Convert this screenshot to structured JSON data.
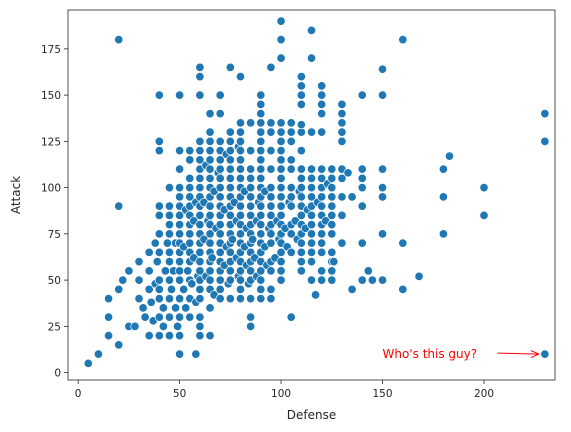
{
  "chart_data": {
    "type": "scatter",
    "title": "",
    "xlabel": "Defense",
    "ylabel": "Attack",
    "xlim": [
      -5,
      235
    ],
    "ylim": [
      -4,
      196
    ],
    "xticks": [
      0,
      50,
      100,
      150,
      200
    ],
    "yticks": [
      0,
      25,
      50,
      75,
      100,
      125,
      150,
      175
    ],
    "grid": false,
    "legend": "none",
    "marker_color": "#1f77b4",
    "annotation": {
      "text": "Who's this guy?",
      "text_x": 150,
      "text_y": 10,
      "target_x": 230,
      "target_y": 10,
      "color": "#ff0000"
    },
    "points": [
      [
        5,
        5
      ],
      [
        10,
        10
      ],
      [
        15,
        20
      ],
      [
        15,
        30
      ],
      [
        15,
        40
      ],
      [
        20,
        15
      ],
      [
        20,
        45
      ],
      [
        20,
        90
      ],
      [
        20,
        180
      ],
      [
        22,
        50
      ],
      [
        25,
        55
      ],
      [
        25,
        25
      ],
      [
        28,
        25
      ],
      [
        30,
        60
      ],
      [
        30,
        50
      ],
      [
        30,
        40
      ],
      [
        32,
        35
      ],
      [
        33,
        30
      ],
      [
        35,
        20
      ],
      [
        35,
        45
      ],
      [
        35,
        55
      ],
      [
        35,
        65
      ],
      [
        36,
        38
      ],
      [
        37,
        28
      ],
      [
        38,
        48
      ],
      [
        38,
        70
      ],
      [
        39,
        60
      ],
      [
        40,
        20
      ],
      [
        40,
        30
      ],
      [
        40,
        40
      ],
      [
        40,
        50
      ],
      [
        40,
        65
      ],
      [
        40,
        75
      ],
      [
        40,
        45
      ],
      [
        40,
        85
      ],
      [
        40,
        90
      ],
      [
        40,
        120
      ],
      [
        40,
        125
      ],
      [
        40,
        150
      ],
      [
        42,
        25
      ],
      [
        42,
        35
      ],
      [
        43,
        55
      ],
      [
        44,
        70
      ],
      [
        45,
        20
      ],
      [
        45,
        30
      ],
      [
        45,
        40
      ],
      [
        45,
        50
      ],
      [
        45,
        60
      ],
      [
        45,
        65
      ],
      [
        45,
        75
      ],
      [
        45,
        80
      ],
      [
        45,
        85
      ],
      [
        45,
        90
      ],
      [
        45,
        100
      ],
      [
        46,
        45
      ],
      [
        47,
        55
      ],
      [
        48,
        35
      ],
      [
        48,
        70
      ],
      [
        49,
        25
      ],
      [
        50,
        10
      ],
      [
        50,
        20
      ],
      [
        50,
        30
      ],
      [
        50,
        40
      ],
      [
        50,
        50
      ],
      [
        50,
        55
      ],
      [
        50,
        60
      ],
      [
        50,
        65
      ],
      [
        50,
        70
      ],
      [
        50,
        75
      ],
      [
        50,
        80
      ],
      [
        50,
        85
      ],
      [
        50,
        90
      ],
      [
        50,
        95
      ],
      [
        50,
        100
      ],
      [
        50,
        110
      ],
      [
        50,
        120
      ],
      [
        50,
        150
      ],
      [
        52,
        45
      ],
      [
        52,
        68
      ],
      [
        53,
        35
      ],
      [
        53,
        88
      ],
      [
        54,
        55
      ],
      [
        55,
        30
      ],
      [
        55,
        40
      ],
      [
        55,
        50
      ],
      [
        55,
        60
      ],
      [
        55,
        65
      ],
      [
        55,
        70
      ],
      [
        55,
        75
      ],
      [
        55,
        80
      ],
      [
        55,
        85
      ],
      [
        55,
        90
      ],
      [
        55,
        95
      ],
      [
        55,
        100
      ],
      [
        55,
        105
      ],
      [
        55,
        115
      ],
      [
        55,
        120
      ],
      [
        56,
        48
      ],
      [
        57,
        62
      ],
      [
        57,
        82
      ],
      [
        58,
        10
      ],
      [
        58,
        38
      ],
      [
        58,
        92
      ],
      [
        59,
        52
      ],
      [
        60,
        20
      ],
      [
        60,
        25
      ],
      [
        60,
        30
      ],
      [
        60,
        40
      ],
      [
        60,
        45
      ],
      [
        60,
        50
      ],
      [
        60,
        55
      ],
      [
        60,
        60
      ],
      [
        60,
        65
      ],
      [
        60,
        70
      ],
      [
        60,
        75
      ],
      [
        60,
        80
      ],
      [
        60,
        85
      ],
      [
        60,
        90
      ],
      [
        60,
        95
      ],
      [
        60,
        100
      ],
      [
        60,
        105
      ],
      [
        60,
        110
      ],
      [
        60,
        115
      ],
      [
        60,
        120
      ],
      [
        60,
        125
      ],
      [
        60,
        150
      ],
      [
        60,
        160
      ],
      [
        60,
        165
      ],
      [
        62,
        72
      ],
      [
        62,
        92
      ],
      [
        63,
        52
      ],
      [
        63,
        112
      ],
      [
        64,
        82
      ],
      [
        65,
        20
      ],
      [
        65,
        35
      ],
      [
        65,
        45
      ],
      [
        65,
        50
      ],
      [
        65,
        55
      ],
      [
        65,
        60
      ],
      [
        65,
        65
      ],
      [
        65,
        70
      ],
      [
        65,
        75
      ],
      [
        65,
        80
      ],
      [
        65,
        85
      ],
      [
        65,
        90
      ],
      [
        65,
        95
      ],
      [
        65,
        100
      ],
      [
        65,
        105
      ],
      [
        65,
        110
      ],
      [
        65,
        115
      ],
      [
        65,
        120
      ],
      [
        65,
        125
      ],
      [
        65,
        130
      ],
      [
        65,
        140
      ],
      [
        66,
        62
      ],
      [
        67,
        42
      ],
      [
        67,
        98
      ],
      [
        68,
        78
      ],
      [
        69,
        108
      ],
      [
        70,
        40
      ],
      [
        70,
        45
      ],
      [
        70,
        50
      ],
      [
        70,
        55
      ],
      [
        70,
        60
      ],
      [
        70,
        65
      ],
      [
        70,
        70
      ],
      [
        70,
        75
      ],
      [
        70,
        80
      ],
      [
        70,
        85
      ],
      [
        70,
        90
      ],
      [
        70,
        95
      ],
      [
        70,
        100
      ],
      [
        70,
        105
      ],
      [
        70,
        110
      ],
      [
        70,
        115
      ],
      [
        70,
        120
      ],
      [
        70,
        125
      ],
      [
        70,
        140
      ],
      [
        70,
        150
      ],
      [
        72,
        58
      ],
      [
        72,
        88
      ],
      [
        73,
        68
      ],
      [
        73,
        118
      ],
      [
        74,
        48
      ],
      [
        75,
        40
      ],
      [
        75,
        50
      ],
      [
        75,
        55
      ],
      [
        75,
        60
      ],
      [
        75,
        65
      ],
      [
        75,
        70
      ],
      [
        75,
        75
      ],
      [
        75,
        80
      ],
      [
        75,
        85
      ],
      [
        75,
        90
      ],
      [
        75,
        95
      ],
      [
        75,
        100
      ],
      [
        75,
        105
      ],
      [
        75,
        110
      ],
      [
        75,
        115
      ],
      [
        75,
        120
      ],
      [
        75,
        125
      ],
      [
        75,
        130
      ],
      [
        75,
        165
      ],
      [
        76,
        72
      ],
      [
        77,
        92
      ],
      [
        78,
        62
      ],
      [
        78,
        82
      ],
      [
        79,
        52
      ],
      [
        79,
        122
      ],
      [
        80,
        40
      ],
      [
        80,
        45
      ],
      [
        80,
        50
      ],
      [
        80,
        55
      ],
      [
        80,
        60
      ],
      [
        80,
        65
      ],
      [
        80,
        70
      ],
      [
        80,
        75
      ],
      [
        80,
        80
      ],
      [
        80,
        85
      ],
      [
        80,
        90
      ],
      [
        80,
        95
      ],
      [
        80,
        100
      ],
      [
        80,
        105
      ],
      [
        80,
        110
      ],
      [
        80,
        115
      ],
      [
        80,
        120
      ],
      [
        80,
        125
      ],
      [
        80,
        130
      ],
      [
        80,
        135
      ],
      [
        80,
        160
      ],
      [
        82,
        68
      ],
      [
        82,
        98
      ],
      [
        83,
        58
      ],
      [
        83,
        78
      ],
      [
        84,
        48
      ],
      [
        85,
        25
      ],
      [
        85,
        30
      ],
      [
        85,
        40
      ],
      [
        85,
        50
      ],
      [
        85,
        55
      ],
      [
        85,
        60
      ],
      [
        85,
        65
      ],
      [
        85,
        70
      ],
      [
        85,
        75
      ],
      [
        85,
        80
      ],
      [
        85,
        85
      ],
      [
        85,
        90
      ],
      [
        85,
        95
      ],
      [
        85,
        100
      ],
      [
        85,
        105
      ],
      [
        85,
        110
      ],
      [
        85,
        120
      ],
      [
        85,
        135
      ],
      [
        86,
        72
      ],
      [
        87,
        62
      ],
      [
        88,
        82
      ],
      [
        88,
        52
      ],
      [
        89,
        92
      ],
      [
        90,
        40
      ],
      [
        90,
        45
      ],
      [
        90,
        50
      ],
      [
        90,
        55
      ],
      [
        90,
        60
      ],
      [
        90,
        65
      ],
      [
        90,
        70
      ],
      [
        90,
        75
      ],
      [
        90,
        80
      ],
      [
        90,
        85
      ],
      [
        90,
        90
      ],
      [
        90,
        95
      ],
      [
        90,
        100
      ],
      [
        90,
        105
      ],
      [
        90,
        110
      ],
      [
        90,
        115
      ],
      [
        90,
        120
      ],
      [
        90,
        125
      ],
      [
        90,
        130
      ],
      [
        90,
        135
      ],
      [
        90,
        140
      ],
      [
        90,
        145
      ],
      [
        90,
        150
      ],
      [
        92,
        68
      ],
      [
        92,
        98
      ],
      [
        93,
        58
      ],
      [
        94,
        78
      ],
      [
        95,
        40
      ],
      [
        95,
        45
      ],
      [
        95,
        55
      ],
      [
        95,
        60
      ],
      [
        95,
        70
      ],
      [
        95,
        75
      ],
      [
        95,
        80
      ],
      [
        95,
        85
      ],
      [
        95,
        90
      ],
      [
        95,
        95
      ],
      [
        95,
        100
      ],
      [
        95,
        110
      ],
      [
        95,
        120
      ],
      [
        95,
        130
      ],
      [
        95,
        135
      ],
      [
        95,
        165
      ],
      [
        97,
        62
      ],
      [
        98,
        82
      ],
      [
        99,
        72
      ],
      [
        100,
        50
      ],
      [
        100,
        55
      ],
      [
        100,
        60
      ],
      [
        100,
        65
      ],
      [
        100,
        70
      ],
      [
        100,
        75
      ],
      [
        100,
        80
      ],
      [
        100,
        85
      ],
      [
        100,
        90
      ],
      [
        100,
        95
      ],
      [
        100,
        100
      ],
      [
        100,
        105
      ],
      [
        100,
        110
      ],
      [
        100,
        115
      ],
      [
        100,
        120
      ],
      [
        100,
        125
      ],
      [
        100,
        130
      ],
      [
        100,
        135
      ],
      [
        100,
        170
      ],
      [
        100,
        180
      ],
      [
        100,
        190
      ],
      [
        102,
        78
      ],
      [
        103,
        68
      ],
      [
        104,
        92
      ],
      [
        105,
        30
      ],
      [
        105,
        65
      ],
      [
        105,
        75
      ],
      [
        105,
        80
      ],
      [
        105,
        90
      ],
      [
        105,
        95
      ],
      [
        105,
        100
      ],
      [
        105,
        110
      ],
      [
        105,
        115
      ],
      [
        105,
        125
      ],
      [
        105,
        130
      ],
      [
        105,
        135
      ],
      [
        107,
        82
      ],
      [
        108,
        72
      ],
      [
        109,
        98
      ],
      [
        110,
        55
      ],
      [
        110,
        60
      ],
      [
        110,
        65
      ],
      [
        110,
        70
      ],
      [
        110,
        75
      ],
      [
        110,
        80
      ],
      [
        110,
        85
      ],
      [
        110,
        90
      ],
      [
        110,
        95
      ],
      [
        110,
        100
      ],
      [
        110,
        105
      ],
      [
        110,
        110
      ],
      [
        110,
        120
      ],
      [
        110,
        130
      ],
      [
        110,
        134
      ],
      [
        110,
        145
      ],
      [
        110,
        150
      ],
      [
        110,
        155
      ],
      [
        110,
        160
      ],
      [
        112,
        78
      ],
      [
        113,
        88
      ],
      [
        115,
        50
      ],
      [
        115,
        60
      ],
      [
        115,
        65
      ],
      [
        115,
        70
      ],
      [
        115,
        75
      ],
      [
        115,
        80
      ],
      [
        115,
        85
      ],
      [
        115,
        90
      ],
      [
        115,
        95
      ],
      [
        115,
        100
      ],
      [
        115,
        105
      ],
      [
        115,
        110
      ],
      [
        115,
        130
      ],
      [
        115,
        170
      ],
      [
        115,
        185
      ],
      [
        117,
        42
      ],
      [
        118,
        92
      ],
      [
        120,
        50
      ],
      [
        120,
        55
      ],
      [
        120,
        65
      ],
      [
        120,
        70
      ],
      [
        120,
        75
      ],
      [
        120,
        80
      ],
      [
        120,
        85
      ],
      [
        120,
        90
      ],
      [
        120,
        95
      ],
      [
        120,
        100
      ],
      [
        120,
        105
      ],
      [
        120,
        110
      ],
      [
        120,
        130
      ],
      [
        120,
        140
      ],
      [
        120,
        145
      ],
      [
        120,
        150
      ],
      [
        120,
        155
      ],
      [
        122,
        82
      ],
      [
        123,
        102
      ],
      [
        125,
        50
      ],
      [
        125,
        55
      ],
      [
        125,
        60
      ],
      [
        125,
        65
      ],
      [
        125,
        75
      ],
      [
        125,
        80
      ],
      [
        125,
        85
      ],
      [
        125,
        90
      ],
      [
        125,
        95
      ],
      [
        125,
        100
      ],
      [
        125,
        105
      ],
      [
        125,
        110
      ],
      [
        126,
        60
      ],
      [
        130,
        70
      ],
      [
        130,
        85
      ],
      [
        130,
        95
      ],
      [
        130,
        105
      ],
      [
        130,
        110
      ],
      [
        130,
        125
      ],
      [
        130,
        130
      ],
      [
        130,
        135
      ],
      [
        130,
        140
      ],
      [
        130,
        145
      ],
      [
        133,
        108
      ],
      [
        135,
        45
      ],
      [
        135,
        95
      ],
      [
        140,
        50
      ],
      [
        140,
        70
      ],
      [
        140,
        90
      ],
      [
        140,
        100
      ],
      [
        140,
        105
      ],
      [
        140,
        110
      ],
      [
        140,
        150
      ],
      [
        143,
        55
      ],
      [
        145,
        50
      ],
      [
        150,
        50
      ],
      [
        150,
        75
      ],
      [
        150,
        95
      ],
      [
        150,
        100
      ],
      [
        150,
        110
      ],
      [
        150,
        150
      ],
      [
        150,
        164
      ],
      [
        160,
        45
      ],
      [
        160,
        70
      ],
      [
        160,
        180
      ],
      [
        168,
        52
      ],
      [
        180,
        75
      ],
      [
        180,
        95
      ],
      [
        180,
        110
      ],
      [
        183,
        117
      ],
      [
        200,
        85
      ],
      [
        200,
        100
      ],
      [
        230,
        10
      ],
      [
        230,
        125
      ],
      [
        230,
        140
      ]
    ]
  }
}
